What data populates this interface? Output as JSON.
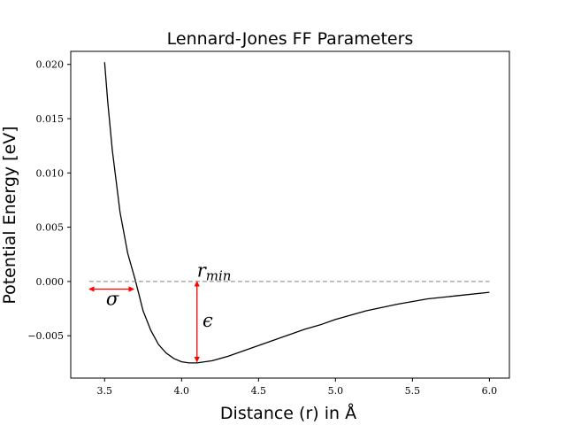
{
  "chart_data": {
    "type": "line",
    "title": "Lennard-Jones FF Parameters",
    "xlabel": "Distance (r) in Å",
    "ylabel": "Potential Energy [eV]",
    "xlim": [
      3.28,
      6.13
    ],
    "ylim": [
      -0.0089,
      0.0212
    ],
    "xticks": [
      3.5,
      4.0,
      4.5,
      5.0,
      5.5,
      6.0
    ],
    "xtick_labels": [
      "3.5",
      "4.0",
      "4.5",
      "5.0",
      "5.5",
      "6.0"
    ],
    "yticks": [
      -0.005,
      0.0,
      0.005,
      0.01,
      0.015,
      0.02
    ],
    "ytick_labels": [
      "−0.005",
      "0.000",
      "0.005",
      "0.010",
      "0.015",
      "0.020"
    ],
    "grid": false,
    "series": [
      {
        "color": "#000000",
        "style": "solid",
        "x": [
          3.5,
          3.52,
          3.55,
          3.6,
          3.65,
          3.7,
          3.75,
          3.8,
          3.85,
          3.9,
          3.95,
          4.0,
          4.05,
          4.1,
          4.15,
          4.2,
          4.3,
          4.4,
          4.5,
          4.6,
          4.7,
          4.8,
          4.9,
          5.0,
          5.2,
          5.4,
          5.6,
          5.8,
          6.0
        ],
        "y": [
          0.0202,
          0.0166,
          0.0121,
          0.0064,
          0.0026,
          0.0001,
          -0.0027,
          -0.0045,
          -0.0058,
          -0.0066,
          -0.0071,
          -0.0074,
          -0.0075,
          -0.0075,
          -0.0074,
          -0.0073,
          -0.0069,
          -0.0064,
          -0.0059,
          -0.0054,
          -0.0049,
          -0.0044,
          -0.004,
          -0.0035,
          -0.0027,
          -0.0021,
          -0.0016,
          -0.0013,
          -0.001
        ]
      },
      {
        "color": "#808080",
        "style": "dashed",
        "x": [
          3.4,
          6.0
        ],
        "y": [
          0.0,
          0.0
        ]
      }
    ],
    "annotations": [
      {
        "text": "σ",
        "kind": "double-arrow",
        "color": "#ff0000",
        "x_from": 3.4,
        "x_to": 3.69,
        "y": -0.0007,
        "label_x": 3.55,
        "label_y": -0.0016
      },
      {
        "text": "ϵ",
        "kind": "double-arrow",
        "color": "#ff0000",
        "x": 4.1,
        "y_from": 0.0,
        "y_to": -0.0074,
        "label_x": 4.17,
        "label_y": -0.0036
      },
      {
        "text": "r",
        "subscript": "min",
        "kind": "label",
        "x": 4.1,
        "y": 0.0001
      }
    ]
  }
}
